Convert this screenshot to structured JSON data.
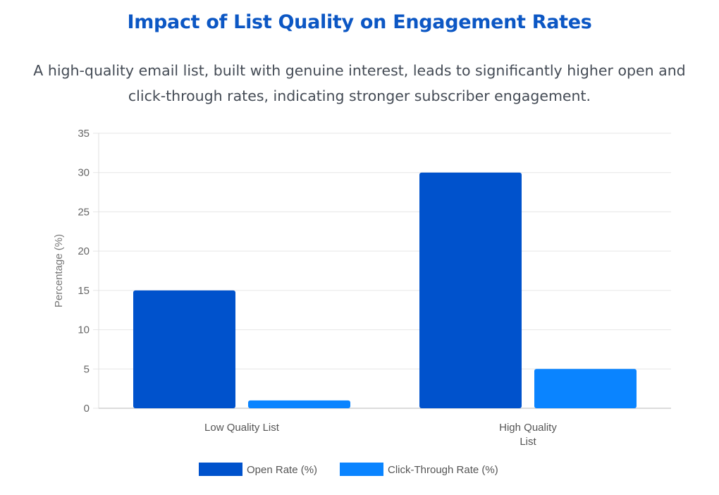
{
  "header": {
    "title": "Impact of List Quality on Engagement Rates",
    "subtitle": "A high-quality email list, built with genuine interest, leads to significantly higher open and click-through rates, indicating stronger subscriber engagement."
  },
  "chart_data": {
    "type": "bar",
    "categories": [
      [
        "Low Quality List"
      ],
      [
        "High Quality",
        "List"
      ]
    ],
    "series": [
      {
        "name": "Open Rate (%)",
        "values": [
          15,
          30
        ],
        "color": "#0052cc"
      },
      {
        "name": "Click-Through Rate (%)",
        "values": [
          1,
          5
        ],
        "color": "#0a84ff"
      }
    ],
    "xlabel": "",
    "ylabel": "Percentage (%)",
    "ylim": [
      0,
      35
    ],
    "yticks": [
      0,
      5,
      10,
      15,
      20,
      25,
      30,
      35
    ],
    "grid": true,
    "legend": "bottom-center"
  }
}
